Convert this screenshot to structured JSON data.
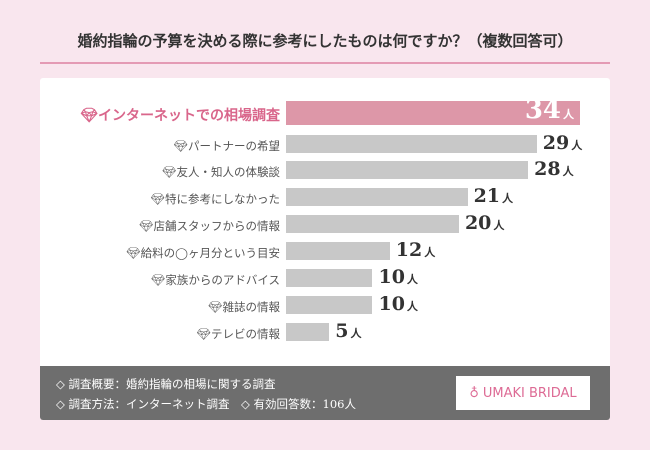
{
  "title": "婚約指輪の予算を決める際に参考にしたものは何ですか？（複数回答可）",
  "chart_data": {
    "type": "bar",
    "orientation": "horizontal",
    "categories": [
      "インターネットでの相場調査",
      "パートナーの希望",
      "友人・知人の体験談",
      "特に参考にしなかった",
      "店舗スタッフからの情報",
      "給料の◯ヶ月分という目安",
      "家族からのアドバイス",
      "雑誌の情報",
      "テレビの情報"
    ],
    "values": [
      34,
      29,
      28,
      21,
      20,
      12,
      10,
      10,
      5
    ],
    "unit": "人",
    "highlight_index": 0,
    "colors": {
      "highlight": "#dd97a8",
      "bar": "#c8c8c8",
      "highlight_label": "#d9668b"
    }
  },
  "footer": {
    "line1": "◇ 調査概要：婚約指輪の相場に関する調査",
    "line2": "◇ 調査方法：インターネット調査　◇ 有効回答数：106人",
    "logo": "UMAKI BRIDAL"
  }
}
